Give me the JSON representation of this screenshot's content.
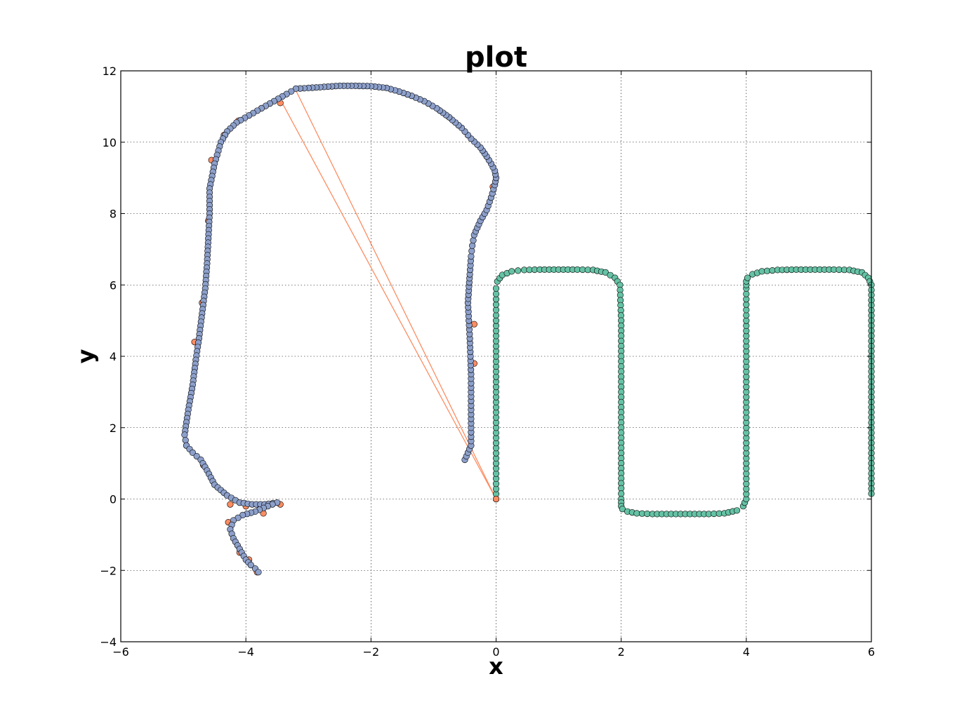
{
  "chart_data": {
    "type": "scatter",
    "title": "plot",
    "xlabel": "x",
    "ylabel": "y",
    "xlim": [
      -6,
      6
    ],
    "ylim": [
      -4,
      12
    ],
    "xticks": [
      -6,
      -4,
      -2,
      0,
      2,
      4,
      6
    ],
    "yticks": [
      -4,
      -2,
      0,
      2,
      4,
      6,
      8,
      10,
      12
    ],
    "xtick_labels": [
      "−6",
      "−4",
      "−2",
      "0",
      "2",
      "4",
      "6"
    ],
    "ytick_labels": [
      "−4",
      "−2",
      "0",
      "2",
      "4",
      "6",
      "8",
      "10",
      "12"
    ],
    "grid": true,
    "colors": {
      "reference": "#66c2a5",
      "odometry": "#fc8d62",
      "estimate": "#8da0cb",
      "edge": "#000000"
    },
    "series": [
      {
        "key": "reference",
        "marker": "circle",
        "mode": "points",
        "x": [
          0.0,
          0.0,
          0.0,
          0.0,
          0.0,
          0.0,
          0.0,
          0.02,
          0.1,
          0.25,
          0.45,
          0.7,
          1.0,
          1.3,
          1.55,
          1.75,
          1.9,
          1.98,
          2.0,
          2.0,
          2.0,
          2.0,
          2.0,
          2.0,
          2.0,
          2.0,
          2.0,
          2.02,
          2.1,
          2.25,
          2.5,
          2.8,
          3.1,
          3.4,
          3.65,
          3.85,
          3.95,
          4.0,
          4.0,
          4.0,
          4.0,
          4.0,
          4.0,
          4.0,
          4.0,
          4.0,
          4.02,
          4.1,
          4.25,
          4.5,
          4.8,
          5.1,
          5.4,
          5.65,
          5.85,
          5.95,
          6.0,
          6.0,
          6.0,
          6.0,
          6.0,
          6.0,
          6.0
        ],
        "y": [
          0.0,
          1.0,
          2.0,
          3.0,
          4.0,
          5.0,
          5.9,
          6.1,
          6.28,
          6.38,
          6.42,
          6.43,
          6.43,
          6.43,
          6.42,
          6.35,
          6.2,
          6.0,
          5.0,
          4.0,
          3.0,
          2.0,
          1.0,
          0.3,
          0.0,
          -0.1,
          -0.2,
          -0.28,
          -0.35,
          -0.4,
          -0.42,
          -0.42,
          -0.42,
          -0.42,
          -0.4,
          -0.32,
          -0.2,
          0.0,
          1.0,
          2.0,
          3.0,
          4.0,
          5.0,
          5.9,
          6.0,
          6.1,
          6.2,
          6.3,
          6.38,
          6.42,
          6.43,
          6.43,
          6.43,
          6.42,
          6.35,
          6.2,
          6.0,
          5.0,
          4.0,
          3.0,
          2.0,
          1.0,
          0.15
        ]
      },
      {
        "key": "odometry",
        "marker": "circle",
        "mode": "points",
        "x": [
          0.0,
          -3.45,
          -3.75,
          -4.12,
          -4.35,
          -4.55,
          -4.6,
          -4.7,
          -4.82,
          -4.95,
          -4.68,
          -4.25,
          -4.0,
          -3.72,
          -3.45,
          -4.28,
          -4.1,
          -3.95,
          -3.82,
          -0.35,
          -0.35,
          -0.05
        ],
        "y": [
          0.0,
          11.1,
          10.95,
          10.6,
          10.2,
          9.5,
          7.8,
          5.5,
          4.4,
          1.5,
          0.95,
          -0.15,
          -0.2,
          -0.4,
          -0.15,
          -0.65,
          -1.5,
          -1.7,
          -2.05,
          4.9,
          3.8,
          8.75
        ]
      },
      {
        "key": "estimate",
        "marker": "circle",
        "mode": "points",
        "x": [
          -0.5,
          -0.4,
          -0.4,
          -0.4,
          -0.42,
          -0.45,
          -0.42,
          -0.4,
          -0.38,
          -0.35,
          -0.25,
          -0.15,
          -0.08,
          -0.02,
          0.0,
          -0.02,
          -0.08,
          -0.15,
          -0.25,
          -0.4,
          -0.55,
          -0.75,
          -0.95,
          -1.15,
          -1.35,
          -1.55,
          -1.75,
          -2.0,
          -2.25,
          -2.5,
          -2.75,
          -3.0,
          -3.2,
          -3.35,
          -3.55,
          -3.75,
          -3.95,
          -4.15,
          -4.3,
          -4.4,
          -4.5,
          -4.58,
          -4.58,
          -4.6,
          -4.62,
          -4.65,
          -4.7,
          -4.75,
          -4.8,
          -4.85,
          -4.92,
          -4.98,
          -4.95,
          -4.85,
          -4.72,
          -4.62,
          -4.5,
          -4.3,
          -4.1,
          -3.9,
          -3.7,
          -3.5,
          -3.65,
          -3.85,
          -4.05,
          -4.2,
          -4.25,
          -4.2,
          -4.1,
          -4.0,
          -3.92,
          -3.85,
          -3.8
        ],
        "y": [
          1.1,
          1.5,
          2.5,
          3.5,
          4.5,
          5.5,
          6.3,
          6.8,
          7.1,
          7.4,
          7.8,
          8.1,
          8.45,
          8.8,
          9.0,
          9.2,
          9.4,
          9.6,
          9.85,
          10.1,
          10.4,
          10.7,
          10.95,
          11.15,
          11.3,
          11.42,
          11.52,
          11.57,
          11.58,
          11.58,
          11.55,
          11.52,
          11.5,
          11.35,
          11.15,
          10.95,
          10.75,
          10.55,
          10.3,
          10.0,
          9.4,
          8.7,
          8.0,
          7.3,
          6.6,
          5.9,
          5.2,
          4.5,
          3.9,
          3.2,
          2.5,
          1.8,
          1.5,
          1.3,
          1.1,
          0.8,
          0.4,
          0.1,
          -0.1,
          -0.15,
          -0.15,
          -0.1,
          -0.2,
          -0.35,
          -0.45,
          -0.6,
          -0.85,
          -1.1,
          -1.4,
          -1.7,
          -1.85,
          -1.95,
          -2.05
        ]
      },
      {
        "key": "odometry-lines",
        "marker": "none",
        "mode": "lines",
        "segments": [
          [
            [
              0.0,
              0.0
            ],
            [
              -3.45,
              11.2
            ]
          ],
          [
            [
              0.0,
              0.0
            ],
            [
              -3.2,
              11.45
            ]
          ]
        ]
      }
    ]
  }
}
